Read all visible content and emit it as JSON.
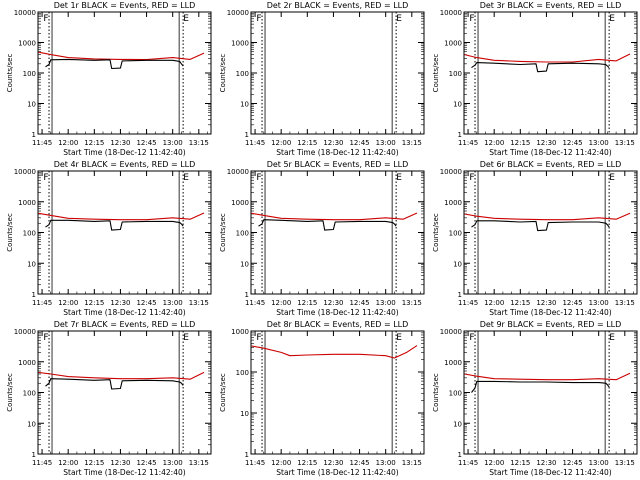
{
  "chart_data": [
    {
      "type": "line",
      "title": "Det 1r BLACK = Events, RED = LLD",
      "xlabel": "Start Time (18-Dec-12 11:42:40)",
      "ylabel": "Counts/sec",
      "ylog": true,
      "ylim": [
        1,
        10000
      ],
      "xlim": [
        "11:42:40",
        "13:22:00"
      ],
      "xticks": [
        "11:45",
        "12:00",
        "12:15",
        "12:30",
        "12:45",
        "13:00",
        "13:15"
      ],
      "yticks": [
        "1",
        "10",
        "100",
        "1000",
        "10000"
      ],
      "vlines": [
        {
          "time": "11:49",
          "label": "F"
        },
        {
          "time": "13:06",
          "label": "E"
        }
      ],
      "series": [
        {
          "color": "#cc0000",
          "x": [
            "11:43",
            "11:50",
            "12:00",
            "12:15",
            "12:30",
            "12:45",
            "13:00",
            "13:10",
            "13:18"
          ],
          "y": [
            480,
            400,
            320,
            290,
            280,
            275,
            320,
            280,
            450
          ]
        },
        {
          "color": "#000000",
          "x": [
            "11:47",
            "11:49",
            "11:50",
            "12:00",
            "12:15",
            "12:24",
            "12:25",
            "12:30",
            "12:31",
            "12:45",
            "13:00",
            "13:04",
            "13:05",
            "13:06"
          ],
          "y": [
            160,
            190,
            270,
            280,
            260,
            270,
            140,
            145,
            250,
            260,
            260,
            240,
            200,
            170
          ]
        }
      ]
    },
    {
      "type": "line",
      "title": "Det 2r BLACK = Events, RED = LLD",
      "xlabel": "Start Time (18-Dec-12 11:42:40)",
      "ylabel": "Counts/sec",
      "ylog": true,
      "ylim": [
        1,
        10000
      ],
      "xlim": [
        "11:42:40",
        "13:22:00"
      ],
      "xticks": [
        "11:45",
        "12:00",
        "12:15",
        "12:30",
        "12:45",
        "13:00",
        "13:15"
      ],
      "yticks": [
        "1",
        "10",
        "100",
        "1000",
        "10000"
      ],
      "vlines": [
        {
          "time": "11:49",
          "label": "F"
        },
        {
          "time": "13:06",
          "label": "E"
        }
      ],
      "series": []
    },
    {
      "type": "line",
      "title": "Det 3r BLACK = Events, RED = LLD",
      "xlabel": "Start Time (18-Dec-12 11:42:40)",
      "ylabel": "Counts/sec",
      "ylog": true,
      "ylim": [
        1,
        10000
      ],
      "xlim": [
        "11:42:40",
        "13:22:00"
      ],
      "xticks": [
        "11:45",
        "12:00",
        "12:15",
        "12:30",
        "12:45",
        "13:00",
        "13:15"
      ],
      "yticks": [
        "1",
        "10",
        "100",
        "1000",
        "10000"
      ],
      "vlines": [
        {
          "time": "11:49",
          "label": "F"
        },
        {
          "time": "13:06",
          "label": "E"
        }
      ],
      "series": [
        {
          "color": "#cc0000",
          "x": [
            "11:43",
            "11:50",
            "12:00",
            "12:15",
            "12:30",
            "12:45",
            "13:00",
            "13:10",
            "13:18"
          ],
          "y": [
            400,
            320,
            260,
            240,
            230,
            230,
            280,
            250,
            420
          ]
        },
        {
          "color": "#000000",
          "x": [
            "11:47",
            "11:49",
            "11:50",
            "12:00",
            "12:15",
            "12:24",
            "12:25",
            "12:30",
            "12:31",
            "12:45",
            "13:00",
            "13:04",
            "13:05",
            "13:06"
          ],
          "y": [
            150,
            180,
            220,
            210,
            190,
            200,
            110,
            115,
            200,
            210,
            200,
            190,
            170,
            150
          ]
        }
      ]
    },
    {
      "type": "line",
      "title": "Det 4r BLACK = Events, RED = LLD",
      "xlabel": "Start Time (18-Dec-12 11:42:40)",
      "ylabel": "Counts/sec",
      "ylog": true,
      "ylim": [
        1,
        10000
      ],
      "xlim": [
        "11:42:40",
        "13:22:00"
      ],
      "xticks": [
        "11:45",
        "12:00",
        "12:15",
        "12:30",
        "12:45",
        "13:00",
        "13:15"
      ],
      "yticks": [
        "1",
        "10",
        "100",
        "1000",
        "10000"
      ],
      "vlines": [
        {
          "time": "11:49",
          "label": "F"
        },
        {
          "time": "13:06",
          "label": "E"
        }
      ],
      "series": [
        {
          "color": "#cc0000",
          "x": [
            "11:43",
            "11:50",
            "12:00",
            "12:15",
            "12:30",
            "12:45",
            "13:00",
            "13:10",
            "13:18"
          ],
          "y": [
            420,
            360,
            290,
            270,
            260,
            260,
            300,
            270,
            430
          ]
        },
        {
          "color": "#000000",
          "x": [
            "11:47",
            "11:49",
            "11:50",
            "12:00",
            "12:15",
            "12:24",
            "12:25",
            "12:30",
            "12:31",
            "12:45",
            "13:00",
            "13:04",
            "13:05",
            "13:06"
          ],
          "y": [
            150,
            180,
            250,
            250,
            230,
            240,
            120,
            125,
            220,
            230,
            230,
            210,
            190,
            160
          ]
        }
      ]
    },
    {
      "type": "line",
      "title": "Det 5r BLACK = Events, RED = LLD",
      "xlabel": "Start Time (18-Dec-12 11:42:40)",
      "ylabel": "Counts/sec",
      "ylog": true,
      "ylim": [
        1,
        10000
      ],
      "xlim": [
        "11:42:40",
        "13:22:00"
      ],
      "xticks": [
        "11:45",
        "12:00",
        "12:15",
        "12:30",
        "12:45",
        "13:00",
        "13:15"
      ],
      "yticks": [
        "1",
        "10",
        "100",
        "1000",
        "10000"
      ],
      "vlines": [
        {
          "time": "11:49",
          "label": "F"
        },
        {
          "time": "13:06",
          "label": "E"
        }
      ],
      "series": [
        {
          "color": "#cc0000",
          "x": [
            "11:43",
            "11:50",
            "12:00",
            "12:15",
            "12:30",
            "12:45",
            "13:00",
            "13:10",
            "13:18"
          ],
          "y": [
            420,
            360,
            290,
            270,
            260,
            260,
            300,
            270,
            430
          ]
        },
        {
          "color": "#000000",
          "x": [
            "11:47",
            "11:49",
            "11:50",
            "12:00",
            "12:15",
            "12:24",
            "12:25",
            "12:30",
            "12:31",
            "12:45",
            "13:00",
            "13:04",
            "13:05",
            "13:06"
          ],
          "y": [
            160,
            190,
            260,
            250,
            230,
            240,
            120,
            125,
            220,
            230,
            230,
            210,
            190,
            160
          ]
        }
      ]
    },
    {
      "type": "line",
      "title": "Det 6r BLACK = Events, RED = LLD",
      "xlabel": "Start Time (18-Dec-12 11:42:40)",
      "ylabel": "Counts/sec",
      "ylog": true,
      "ylim": [
        1,
        10000
      ],
      "xlim": [
        "11:42:40",
        "13:22:00"
      ],
      "xticks": [
        "11:45",
        "12:00",
        "12:15",
        "12:30",
        "12:45",
        "13:00",
        "13:15"
      ],
      "yticks": [
        "1",
        "10",
        "100",
        "1000",
        "10000"
      ],
      "vlines": [
        {
          "time": "11:49",
          "label": "F"
        },
        {
          "time": "13:06",
          "label": "E"
        }
      ],
      "series": [
        {
          "color": "#cc0000",
          "x": [
            "11:43",
            "11:50",
            "12:00",
            "12:15",
            "12:30",
            "12:45",
            "13:00",
            "13:10",
            "13:18"
          ],
          "y": [
            400,
            340,
            290,
            270,
            260,
            260,
            300,
            270,
            420
          ]
        },
        {
          "color": "#000000",
          "x": [
            "11:47",
            "11:49",
            "11:50",
            "12:00",
            "12:15",
            "12:24",
            "12:25",
            "12:30",
            "12:31",
            "12:45",
            "13:00",
            "13:04",
            "13:05",
            "13:06"
          ],
          "y": [
            150,
            180,
            240,
            240,
            220,
            230,
            115,
            120,
            210,
            220,
            220,
            200,
            180,
            150
          ]
        }
      ]
    },
    {
      "type": "line",
      "title": "Det 7r BLACK = Events, RED = LLD",
      "xlabel": "Start Time (18-Dec-12 11:42:40)",
      "ylabel": "Counts/sec",
      "ylog": true,
      "ylim": [
        1,
        10000
      ],
      "xlim": [
        "11:42:40",
        "13:22:00"
      ],
      "xticks": [
        "11:45",
        "12:00",
        "12:15",
        "12:30",
        "12:45",
        "13:00",
        "13:15"
      ],
      "yticks": [
        "1",
        "10",
        "100",
        "1000",
        "10000"
      ],
      "vlines": [
        {
          "time": "11:49",
          "label": "F"
        },
        {
          "time": "13:06",
          "label": "E"
        }
      ],
      "series": [
        {
          "color": "#cc0000",
          "x": [
            "11:43",
            "11:50",
            "12:00",
            "12:15",
            "12:30",
            "12:45",
            "13:00",
            "13:10",
            "13:18"
          ],
          "y": [
            450,
            400,
            330,
            300,
            280,
            280,
            300,
            270,
            450
          ]
        },
        {
          "color": "#000000",
          "x": [
            "11:47",
            "11:49",
            "11:50",
            "12:00",
            "12:15",
            "12:24",
            "12:25",
            "12:30",
            "12:31",
            "12:45",
            "13:00",
            "13:04",
            "13:05",
            "13:06"
          ],
          "y": [
            160,
            200,
            280,
            270,
            250,
            260,
            130,
            135,
            240,
            250,
            240,
            220,
            200,
            170
          ]
        }
      ]
    },
    {
      "type": "line",
      "title": "Det 8r BLACK = Events, RED = LLD",
      "xlabel": "Start Time (18-Dec-12 11:42:40)",
      "ylabel": "Counts/sec",
      "ylog": true,
      "ylim": [
        1,
        1000
      ],
      "xlim": [
        "11:42:40",
        "13:22:00"
      ],
      "xticks": [
        "11:45",
        "12:00",
        "12:15",
        "12:30",
        "12:45",
        "13:00",
        "13:15"
      ],
      "yticks": [
        "1",
        "10",
        "100",
        "1000"
      ],
      "vlines": [
        {
          "time": "11:49",
          "label": "F"
        },
        {
          "time": "13:06",
          "label": "E"
        }
      ],
      "series": [
        {
          "color": "#cc0000",
          "x": [
            "11:43",
            "11:50",
            "12:00",
            "12:05",
            "12:15",
            "12:30",
            "12:45",
            "13:00",
            "13:05",
            "13:12",
            "13:18"
          ],
          "y": [
            430,
            380,
            300,
            250,
            260,
            270,
            270,
            250,
            220,
            300,
            440
          ]
        }
      ]
    },
    {
      "type": "line",
      "title": "Det 9r BLACK = Events, RED = LLD",
      "xlabel": "Start Time (18-Dec-12 11:42:40)",
      "ylabel": "Counts/sec",
      "ylog": true,
      "ylim": [
        1,
        10000
      ],
      "xlim": [
        "11:42:40",
        "13:22:00"
      ],
      "xticks": [
        "11:45",
        "12:00",
        "12:15",
        "12:30",
        "12:45",
        "13:00",
        "13:15"
      ],
      "yticks": [
        "1",
        "10",
        "100",
        "1000",
        "10000"
      ],
      "vlines": [
        {
          "time": "11:49",
          "label": "F"
        },
        {
          "time": "13:06",
          "label": "E"
        }
      ],
      "series": [
        {
          "color": "#cc0000",
          "x": [
            "11:43",
            "11:50",
            "12:00",
            "12:15",
            "12:30",
            "12:45",
            "13:00",
            "13:10",
            "13:18"
          ],
          "y": [
            400,
            340,
            280,
            270,
            260,
            260,
            280,
            260,
            420
          ]
        },
        {
          "color": "#000000",
          "x": [
            "11:47",
            "11:49",
            "11:50",
            "12:00",
            "12:15",
            "12:30",
            "12:45",
            "13:00",
            "13:04",
            "13:05",
            "13:06"
          ],
          "y": [
            100,
            140,
            230,
            230,
            220,
            220,
            210,
            210,
            200,
            180,
            150
          ]
        }
      ]
    }
  ]
}
